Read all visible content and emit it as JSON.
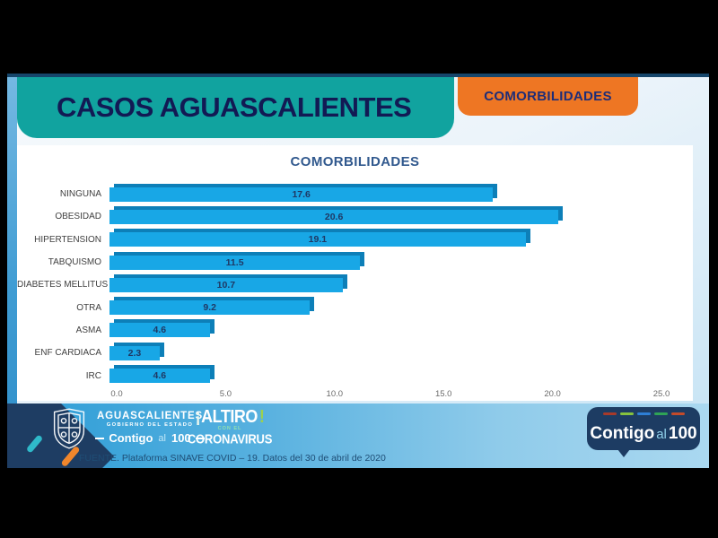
{
  "header": {
    "title": "CASOS AGUASCALIENTES",
    "tab_label": "COMORBILIDADES"
  },
  "chart_data": {
    "type": "bar",
    "orientation": "horizontal",
    "title": "COMORBILIDADES",
    "categories": [
      "NINGUNA",
      "OBESIDAD",
      "HIPERTENSION",
      "TABQUISMO",
      "DIABETES MELLITUS",
      "OTRA",
      "ASMA",
      "ENF CARDIACA",
      "IRC"
    ],
    "values": [
      17.6,
      20.6,
      19.1,
      11.5,
      10.7,
      9.2,
      4.6,
      2.3,
      4.6
    ],
    "xlim": [
      0,
      25
    ],
    "x_tick_labels": [
      "0.0",
      "5.0",
      "10.0",
      "15.0",
      "20.0",
      "25.0"
    ],
    "xlabel": "",
    "ylabel": "",
    "grid": false,
    "legend": false,
    "data_labels": true
  },
  "footer": {
    "gov": {
      "name": "AGUASCALIENTES",
      "subtitle": "GOBIERNO DEL ESTADO",
      "slogan": {
        "word1": "Contigo",
        "word2": "al",
        "word3": "100"
      }
    },
    "campaign": {
      "excl_left": "¡",
      "top": "ALTIRO",
      "excl_right": "!",
      "mid": "CON EL",
      "bottom": "CORONAVIRUS"
    },
    "source": "FUENTE. Plataforma SINAVE COVID – 19. Datos del 30 de abril de 2020",
    "badge": {
      "word1": "Contigo",
      "word2": "al",
      "word3": "100",
      "dash_colors": [
        "#a83a2a",
        "#86c23e",
        "#2e7fd6",
        "#2fa356",
        "#c44b2a"
      ]
    }
  },
  "colors": {
    "teal_header": "#11a39f",
    "orange_tab": "#ee7623",
    "navy_title": "#121a54",
    "top_line": "#16466b",
    "bar_fill": "#18a7e6",
    "bar_side": "#0d7fb8",
    "value_label": "#1f3864",
    "chart_title": "#31598e",
    "category_label": "#3f3f3f",
    "tick_label": "#6a6a6a",
    "footer_left": "#2b9cd6",
    "footer_right": "#aad8f0",
    "badge_navy": "#1d3c63",
    "source_text": "#1e4d75"
  }
}
